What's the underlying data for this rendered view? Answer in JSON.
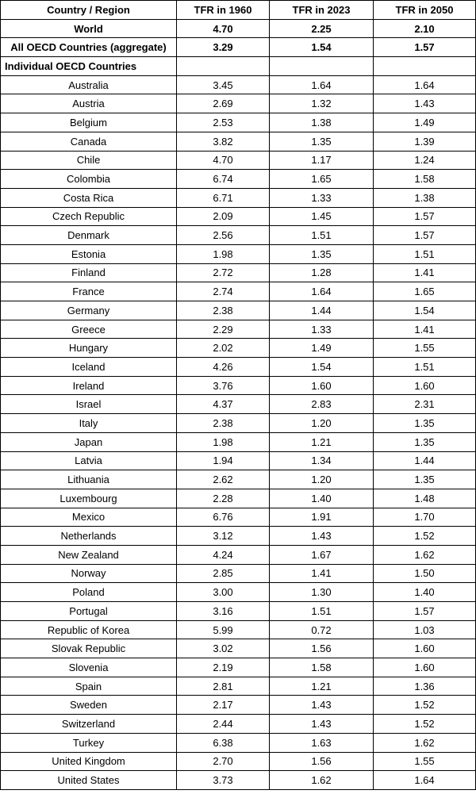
{
  "headers": [
    "Country / Region",
    "TFR in 1960",
    "TFR in 2023",
    "TFR in 2050"
  ],
  "summary_rows": [
    {
      "name": "World",
      "v1960": "4.70",
      "v2023": "2.25",
      "v2050": "2.10"
    },
    {
      "name": "All OECD Countries (aggregate)",
      "v1960": "3.29",
      "v2023": "1.54",
      "v2050": "1.57"
    }
  ],
  "section_label": "Individual OECD Countries",
  "countries": [
    {
      "name": "Australia",
      "v1960": "3.45",
      "v2023": "1.64",
      "v2050": "1.64"
    },
    {
      "name": "Austria",
      "v1960": "2.69",
      "v2023": "1.32",
      "v2050": "1.43"
    },
    {
      "name": "Belgium",
      "v1960": "2.53",
      "v2023": "1.38",
      "v2050": "1.49"
    },
    {
      "name": "Canada",
      "v1960": "3.82",
      "v2023": "1.35",
      "v2050": "1.39"
    },
    {
      "name": "Chile",
      "v1960": "4.70",
      "v2023": "1.17",
      "v2050": "1.24"
    },
    {
      "name": "Colombia",
      "v1960": "6.74",
      "v2023": "1.65",
      "v2050": "1.58"
    },
    {
      "name": "Costa Rica",
      "v1960": "6.71",
      "v2023": "1.33",
      "v2050": "1.38"
    },
    {
      "name": "Czech Republic",
      "v1960": "2.09",
      "v2023": "1.45",
      "v2050": "1.57"
    },
    {
      "name": "Denmark",
      "v1960": "2.56",
      "v2023": "1.51",
      "v2050": "1.57"
    },
    {
      "name": "Estonia",
      "v1960": "1.98",
      "v2023": "1.35",
      "v2050": "1.51"
    },
    {
      "name": "Finland",
      "v1960": "2.72",
      "v2023": "1.28",
      "v2050": "1.41"
    },
    {
      "name": "France",
      "v1960": "2.74",
      "v2023": "1.64",
      "v2050": "1.65"
    },
    {
      "name": "Germany",
      "v1960": "2.38",
      "v2023": "1.44",
      "v2050": "1.54"
    },
    {
      "name": "Greece",
      "v1960": "2.29",
      "v2023": "1.33",
      "v2050": "1.41"
    },
    {
      "name": "Hungary",
      "v1960": "2.02",
      "v2023": "1.49",
      "v2050": "1.55"
    },
    {
      "name": "Iceland",
      "v1960": "4.26",
      "v2023": "1.54",
      "v2050": "1.51"
    },
    {
      "name": "Ireland",
      "v1960": "3.76",
      "v2023": "1.60",
      "v2050": "1.60"
    },
    {
      "name": "Israel",
      "v1960": "4.37",
      "v2023": "2.83",
      "v2050": "2.31"
    },
    {
      "name": "Italy",
      "v1960": "2.38",
      "v2023": "1.20",
      "v2050": "1.35"
    },
    {
      "name": "Japan",
      "v1960": "1.98",
      "v2023": "1.21",
      "v2050": "1.35"
    },
    {
      "name": "Latvia",
      "v1960": "1.94",
      "v2023": "1.34",
      "v2050": "1.44"
    },
    {
      "name": "Lithuania",
      "v1960": "2.62",
      "v2023": "1.20",
      "v2050": "1.35"
    },
    {
      "name": "Luxembourg",
      "v1960": "2.28",
      "v2023": "1.40",
      "v2050": "1.48"
    },
    {
      "name": "Mexico",
      "v1960": "6.76",
      "v2023": "1.91",
      "v2050": "1.70"
    },
    {
      "name": "Netherlands",
      "v1960": "3.12",
      "v2023": "1.43",
      "v2050": "1.52"
    },
    {
      "name": "New Zealand",
      "v1960": "4.24",
      "v2023": "1.67",
      "v2050": "1.62"
    },
    {
      "name": "Norway",
      "v1960": "2.85",
      "v2023": "1.41",
      "v2050": "1.50"
    },
    {
      "name": "Poland",
      "v1960": "3.00",
      "v2023": "1.30",
      "v2050": "1.40"
    },
    {
      "name": "Portugal",
      "v1960": "3.16",
      "v2023": "1.51",
      "v2050": "1.57"
    },
    {
      "name": "Republic of Korea",
      "v1960": "5.99",
      "v2023": "0.72",
      "v2050": "1.03"
    },
    {
      "name": "Slovak Republic",
      "v1960": "3.02",
      "v2023": "1.56",
      "v2050": "1.60"
    },
    {
      "name": "Slovenia",
      "v1960": "2.19",
      "v2023": "1.58",
      "v2050": "1.60"
    },
    {
      "name": "Spain",
      "v1960": "2.81",
      "v2023": "1.21",
      "v2050": "1.36"
    },
    {
      "name": "Sweden",
      "v1960": "2.17",
      "v2023": "1.43",
      "v2050": "1.52"
    },
    {
      "name": "Switzerland",
      "v1960": "2.44",
      "v2023": "1.43",
      "v2050": "1.52"
    },
    {
      "name": "Turkey",
      "v1960": "6.38",
      "v2023": "1.63",
      "v2050": "1.62"
    },
    {
      "name": "United Kingdom",
      "v1960": "2.70",
      "v2023": "1.56",
      "v2050": "1.55"
    },
    {
      "name": "United States",
      "v1960": "3.73",
      "v2023": "1.62",
      "v2050": "1.64"
    }
  ]
}
